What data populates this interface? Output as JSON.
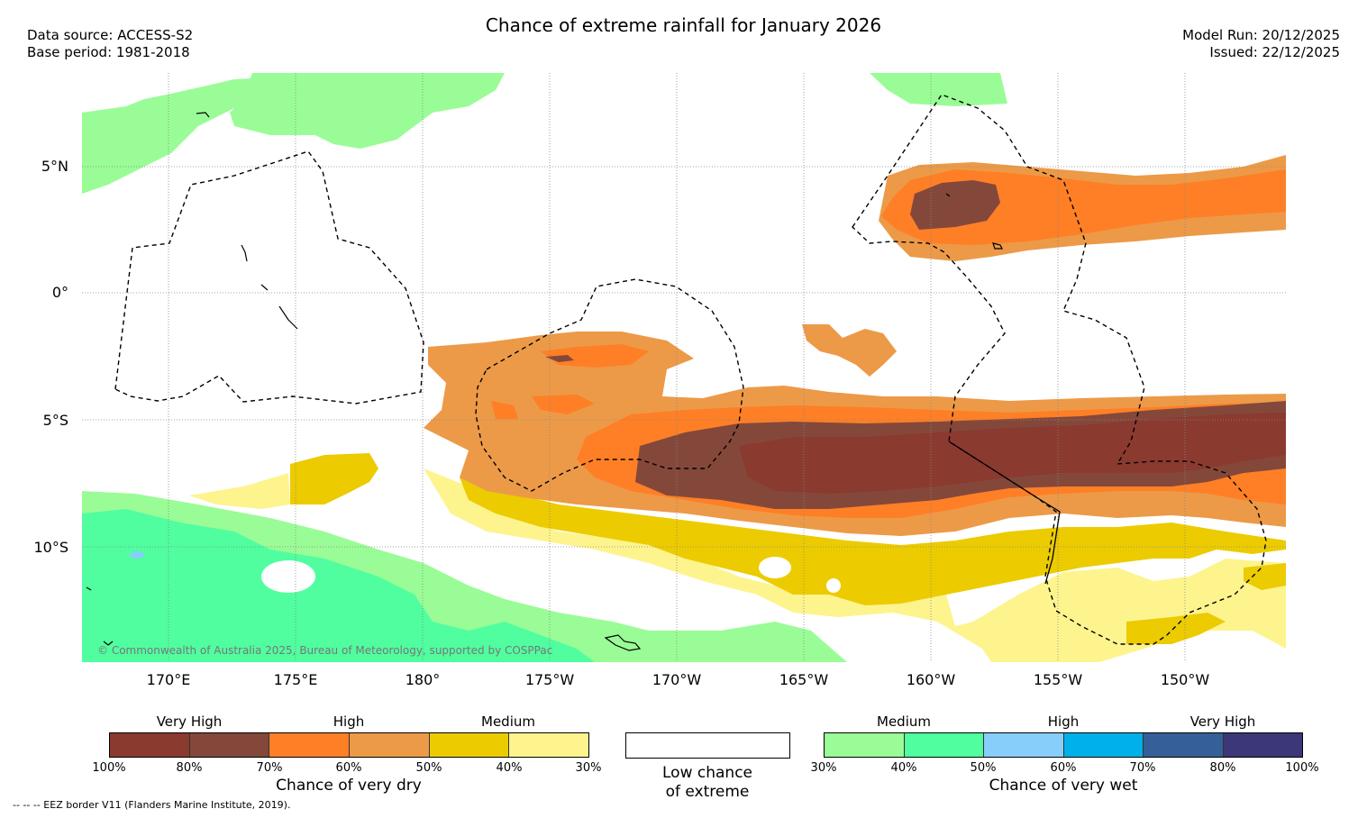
{
  "header": {
    "title": "Chance of extreme rainfall for January 2026",
    "data_source": "Data source: ACCESS-S2",
    "base_period": "Base period: 1981-2018",
    "model_run": "Model Run: 20/12/2025",
    "issued": "Issued: 22/12/2025"
  },
  "map": {
    "lat_labels": [
      "5°N",
      "0°",
      "5°S",
      "10°S"
    ],
    "lon_labels": [
      "170°E",
      "175°E",
      "180°",
      "175°W",
      "170°W",
      "165°W",
      "160°W",
      "155°W",
      "150°W"
    ],
    "copyright": "© Commonwealth of Australia 2025, Bureau of Meteorology, supported by COSPPac"
  },
  "colors": {
    "dry_very_high_1": "#8b3a30",
    "dry_very_high_2": "#84483a",
    "dry_high_1": "#fe7f26",
    "dry_high_2": "#ec9a48",
    "dry_medium_1": "#eccb00",
    "dry_medium_2": "#fdf48e",
    "wet_medium_1": "#9afc96",
    "wet_medium_2": "#50fea0",
    "wet_high_1": "#87cefa",
    "wet_high_2": "#00b0e8",
    "wet_very_high_1": "#355f98",
    "wet_very_high_2": "#3b3779",
    "grid": "#888888"
  },
  "legend": {
    "dry": {
      "categories": [
        "Very High",
        "High",
        "Medium"
      ],
      "ticks": [
        "100%",
        "80%",
        "70%",
        "60%",
        "50%",
        "40%",
        "30%"
      ],
      "label": "Chance of very dry"
    },
    "low": {
      "label_line1": "Low chance",
      "label_line2": "of extreme"
    },
    "wet": {
      "categories": [
        "Medium",
        "High",
        "Very High"
      ],
      "ticks": [
        "30%",
        "40%",
        "50%",
        "60%",
        "70%",
        "80%",
        "100%"
      ],
      "label": "Chance of very wet"
    }
  },
  "footnote": "--  --  -- EEZ border V11 (Flanders Marine Institute, 2019)."
}
